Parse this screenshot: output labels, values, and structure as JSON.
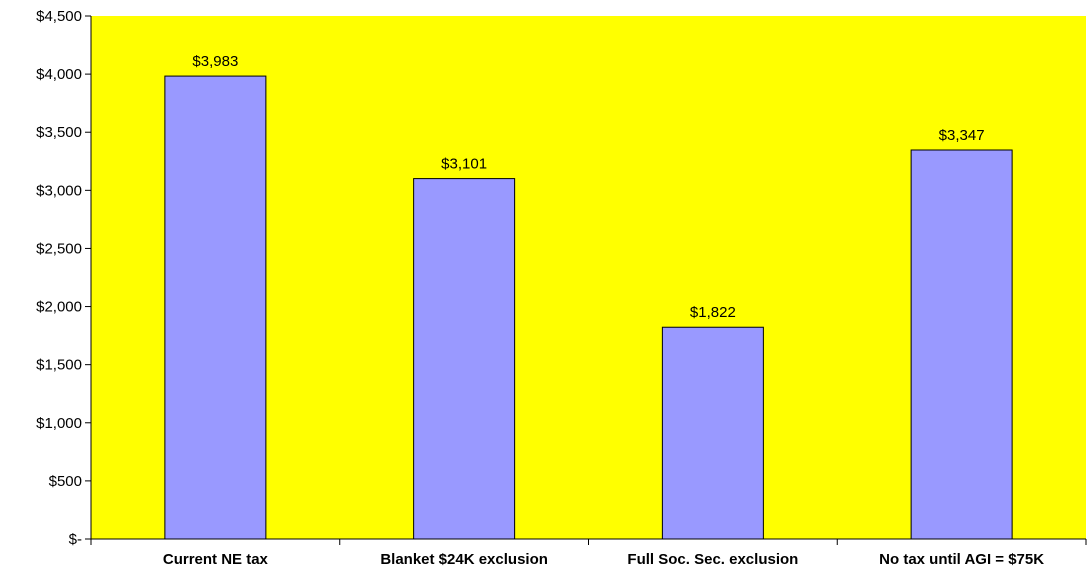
{
  "chart_data": {
    "type": "bar",
    "title": "",
    "xlabel": "",
    "ylabel": "",
    "categories": [
      "Current NE tax",
      "Blanket $24K exclusion",
      "Full Soc. Sec. exclusion",
      "No tax until AGI = $75K"
    ],
    "values": [
      3983,
      3101,
      1822,
      3347
    ],
    "data_labels": [
      "$3,983",
      "$3,101",
      "$1,822",
      "$3,347"
    ],
    "ylim": [
      0,
      4500
    ],
    "yticks": [
      0,
      500,
      1000,
      1500,
      2000,
      2500,
      3000,
      3500,
      4000,
      4500
    ],
    "ytick_labels": [
      "$-",
      "$500",
      "$1,000",
      "$1,500",
      "$2,000",
      "$2,500",
      "$3,000",
      "$3,500",
      "$4,000",
      "$4,500"
    ],
    "grid": false,
    "legend": "none",
    "colors": {
      "plot_background": "#FFFF00",
      "bar_fill": "#9999FF",
      "bar_stroke": "#000000",
      "axis": "#000000"
    }
  }
}
